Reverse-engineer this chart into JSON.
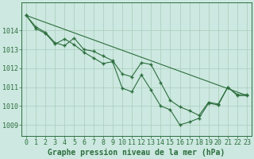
{
  "title": "Graphe pression niveau de la mer (hPa)",
  "background_color": "#cce8e0",
  "plot_bg_color": "#cce8e0",
  "grid_color": "#aaccbb",
  "line_color": "#2d6e3e",
  "marker_color": "#2d6e3e",
  "border_color": "#2d6e3e",
  "xlim": [
    -0.5,
    23.5
  ],
  "ylim": [
    1008.4,
    1015.5
  ],
  "yticks": [
    1009,
    1010,
    1011,
    1012,
    1013,
    1014
  ],
  "xticks": [
    0,
    1,
    2,
    3,
    4,
    5,
    6,
    7,
    8,
    9,
    10,
    11,
    12,
    13,
    14,
    15,
    16,
    17,
    18,
    19,
    20,
    21,
    22,
    23
  ],
  "line1_x": [
    0,
    1,
    2,
    3,
    4,
    5,
    6,
    7,
    8,
    9,
    10,
    11,
    12,
    13,
    14,
    15,
    16,
    17,
    18,
    19,
    20,
    21,
    22,
    23
  ],
  "line1_y": [
    1014.8,
    1014.1,
    1013.85,
    1013.28,
    1013.55,
    1013.25,
    1012.85,
    1012.55,
    1012.25,
    1012.35,
    1010.95,
    1010.75,
    1011.65,
    1010.85,
    1010.0,
    1009.8,
    1009.0,
    1009.15,
    1009.35,
    1010.15,
    1010.05,
    1011.0,
    1010.55,
    1010.55
  ],
  "line2_x": [
    0,
    1,
    2,
    3,
    4,
    5,
    6,
    7,
    8,
    9,
    10,
    11,
    12,
    13,
    14,
    15,
    16,
    17,
    18,
    19,
    20,
    21,
    22,
    23
  ],
  "line2_y": [
    1014.8,
    1014.2,
    1013.9,
    1013.35,
    1013.2,
    1013.6,
    1013.0,
    1012.9,
    1012.65,
    1012.4,
    1011.7,
    1011.55,
    1012.3,
    1012.2,
    1011.25,
    1010.3,
    1009.95,
    1009.75,
    1009.5,
    1010.2,
    1010.1,
    1011.0,
    1010.6,
    1010.6
  ],
  "line3_x": [
    0,
    23
  ],
  "line3_y": [
    1014.8,
    1010.55
  ],
  "title_fontsize": 7,
  "tick_fontsize": 6
}
